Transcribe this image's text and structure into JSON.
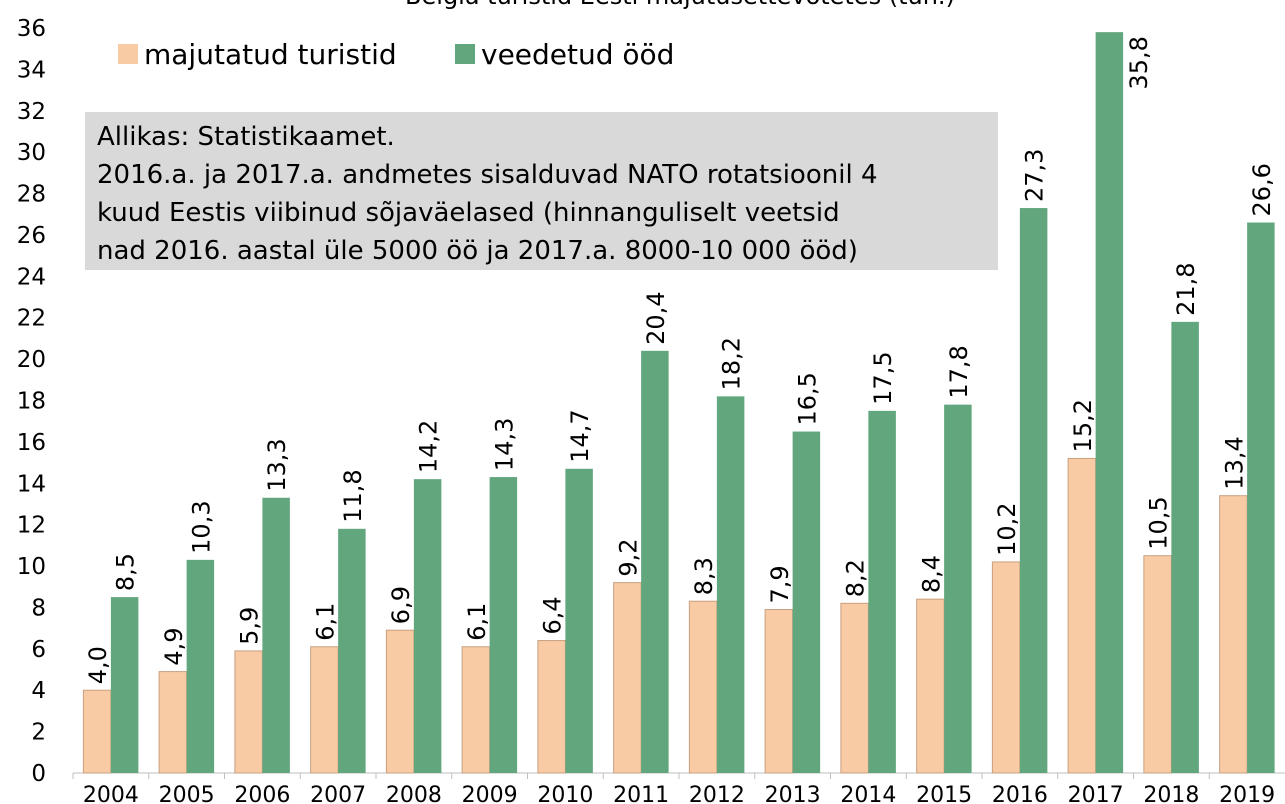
{
  "chart_data": {
    "type": "bar",
    "title": "Belgia turistid Eesti majutusettevõtetes (tuh.)",
    "categories": [
      "2004",
      "2005",
      "2006",
      "2007",
      "2008",
      "2009",
      "2010",
      "2011",
      "2012",
      "2013",
      "2014",
      "2015",
      "2016",
      "2017",
      "2018",
      "2019"
    ],
    "series": [
      {
        "name": "majutatud turistid",
        "color": "#f8cba5",
        "values": [
          4.0,
          4.9,
          5.9,
          6.1,
          6.9,
          6.1,
          6.4,
          9.2,
          8.3,
          7.9,
          8.2,
          8.4,
          10.2,
          15.2,
          10.5,
          13.4
        ],
        "value_labels": [
          "4,0",
          "4,9",
          "5,9",
          "6,1",
          "6,9",
          "6,1",
          "6,4",
          "9,2",
          "8,3",
          "7,9",
          "8,2",
          "8,4",
          "10,2",
          "15,2",
          "10,5",
          "13,4"
        ]
      },
      {
        "name": "veedetud ööd",
        "color": "#62a67e",
        "values": [
          8.5,
          10.3,
          13.3,
          11.8,
          14.2,
          14.3,
          14.7,
          20.4,
          18.2,
          16.5,
          17.5,
          17.8,
          27.3,
          35.8,
          21.8,
          26.6
        ],
        "value_labels": [
          "8,5",
          "10,3",
          "13,3",
          "11,8",
          "14,2",
          "14,3",
          "14,7",
          "20,4",
          "18,2",
          "16,5",
          "17,5",
          "17,8",
          "27,3",
          "35,8",
          "21,8",
          "26,6"
        ]
      }
    ],
    "ylim": [
      0,
      36
    ],
    "yticks": [
      0,
      2,
      4,
      6,
      8,
      10,
      12,
      14,
      16,
      18,
      20,
      22,
      24,
      26,
      28,
      30,
      32,
      34,
      36
    ],
    "legend": "top-left",
    "note": [
      "Allikas: Statistikaamet.",
      "2016.a. ja 2017.a. andmetes sisalduvad NATO rotatsioonil 4",
      "kuud Eestis viibinud sõjaväelased (hinnanguliselt veetsid",
      "nad 2016. aastal üle 5000 öö ja 2017.a. 8000-10 000 ööd)"
    ]
  }
}
